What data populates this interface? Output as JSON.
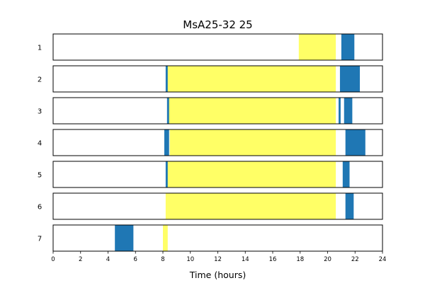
{
  "chart_data": {
    "type": "bar",
    "title": "MsA25-32 25",
    "xlabel": "Time (hours)",
    "ylabel": "",
    "xlim": [
      0,
      24
    ],
    "x_ticks": [
      0,
      2,
      4,
      6,
      8,
      10,
      12,
      14,
      16,
      18,
      20,
      22,
      24
    ],
    "grid": false,
    "colors": {
      "light": "#ffff66",
      "activity": "#1f77b4"
    },
    "rows": [
      {
        "label": "1",
        "light": [
          [
            17.9,
            20.6
          ]
        ],
        "activity": [
          [
            21.0,
            21.95
          ]
        ]
      },
      {
        "label": "2",
        "light": [
          [
            8.3,
            20.6
          ]
        ],
        "activity": [
          [
            8.2,
            8.35
          ],
          [
            20.9,
            22.35
          ]
        ]
      },
      {
        "label": "3",
        "light": [
          [
            8.4,
            20.6
          ]
        ],
        "activity": [
          [
            8.3,
            8.45
          ],
          [
            20.8,
            20.95
          ],
          [
            21.2,
            21.8
          ]
        ]
      },
      {
        "label": "4",
        "light": [
          [
            8.5,
            20.6
          ]
        ],
        "activity": [
          [
            8.1,
            8.45
          ],
          [
            21.3,
            22.75
          ]
        ]
      },
      {
        "label": "5",
        "light": [
          [
            8.3,
            20.6
          ]
        ],
        "activity": [
          [
            8.2,
            8.35
          ],
          [
            21.1,
            21.6
          ]
        ]
      },
      {
        "label": "6",
        "light": [
          [
            8.2,
            20.6
          ]
        ],
        "activity": [
          [
            21.3,
            21.9
          ]
        ]
      },
      {
        "label": "7",
        "light": [
          [
            8.0,
            8.35
          ]
        ],
        "activity": [
          [
            4.5,
            5.85
          ]
        ]
      }
    ]
  }
}
